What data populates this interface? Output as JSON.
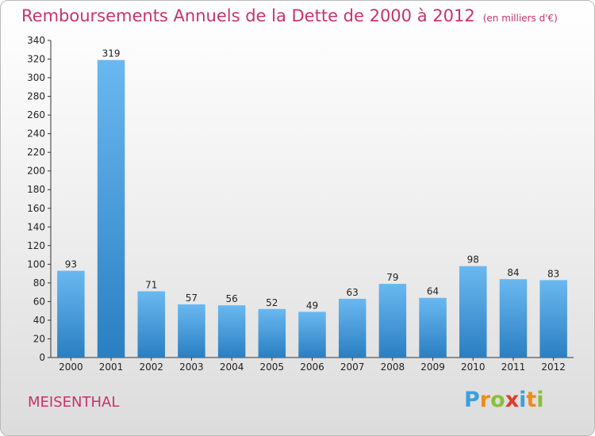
{
  "title": "Remboursements Annuels de la Dette de 2000 à 2012",
  "unit_label": "(en milliers d'€)",
  "city": "MEISENTHAL",
  "logo": "Proxiti",
  "colors": {
    "title": "#c8326a",
    "bar_light": "#6ab8f0",
    "bar_dark": "#2a7fc2"
  },
  "chart_data": {
    "type": "bar",
    "title": "Remboursements Annuels de la Dette de 2000 à 2012",
    "categories": [
      "2000",
      "2001",
      "2002",
      "2003",
      "2004",
      "2005",
      "2006",
      "2007",
      "2008",
      "2009",
      "2010",
      "2011",
      "2012"
    ],
    "values": [
      93,
      319,
      71,
      57,
      56,
      52,
      49,
      63,
      79,
      64,
      98,
      84,
      83
    ],
    "ylim": [
      0,
      340
    ],
    "yticks": [
      0,
      20,
      40,
      60,
      80,
      100,
      120,
      140,
      160,
      180,
      200,
      220,
      240,
      260,
      280,
      300,
      320,
      340
    ],
    "grid": false,
    "data_labels": true
  }
}
